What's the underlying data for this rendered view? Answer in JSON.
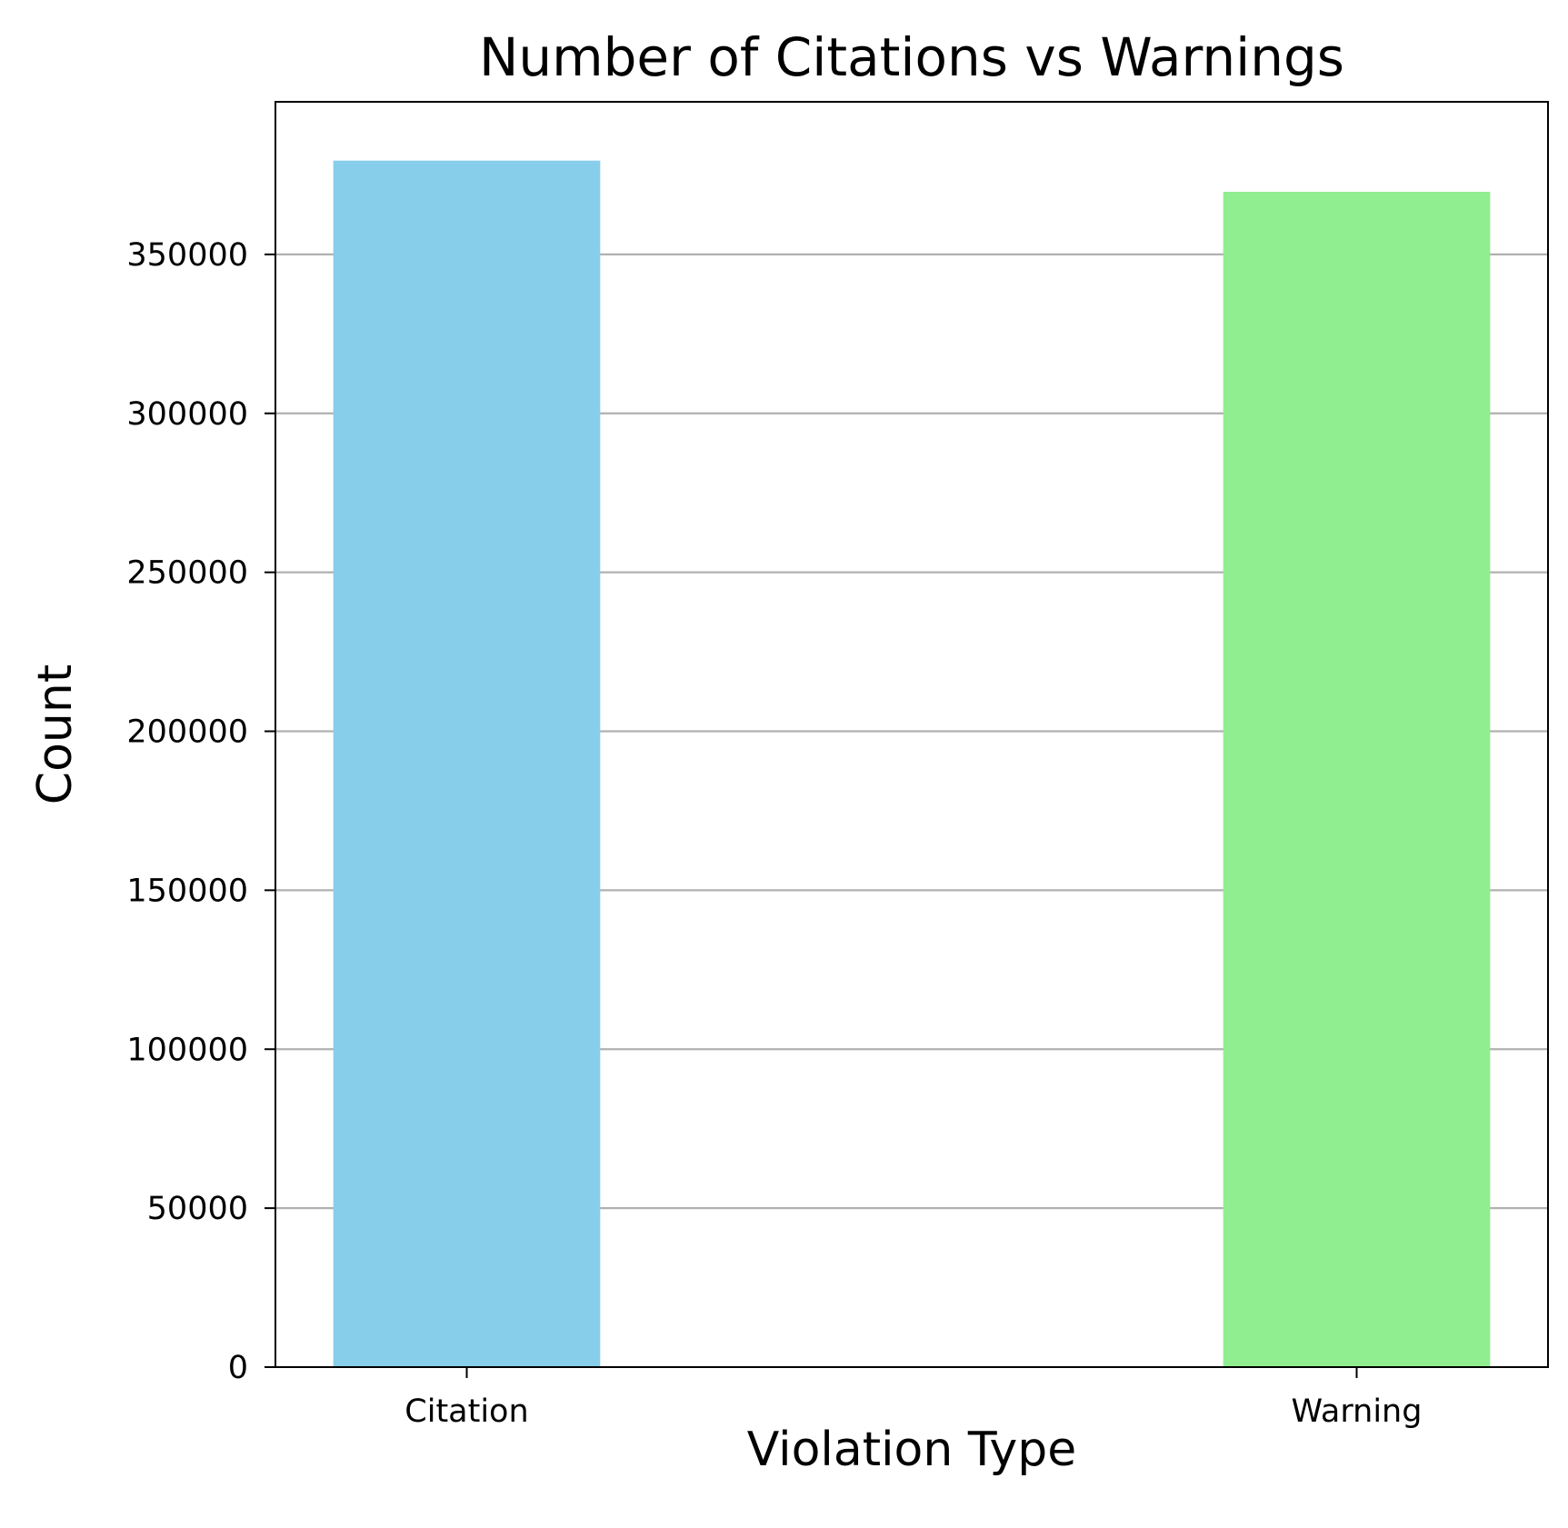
{
  "chart_data": {
    "type": "bar",
    "title": "Number of Citations vs Warnings",
    "xlabel": "Violation Type",
    "ylabel": "Count",
    "categories": [
      "Citation",
      "Warning"
    ],
    "values": [
      379500,
      369700
    ],
    "colors": [
      "#87CEEB",
      "#90EE90"
    ],
    "ylim": [
      0,
      398000
    ],
    "yticks": [
      0,
      50000,
      100000,
      150000,
      200000,
      250000,
      300000,
      350000
    ],
    "ytick_labels": [
      "0",
      "50000",
      "100000",
      "150000",
      "200000",
      "250000",
      "300000",
      "350000"
    ],
    "grid": "y",
    "grid_color": "#b0b0b0"
  }
}
